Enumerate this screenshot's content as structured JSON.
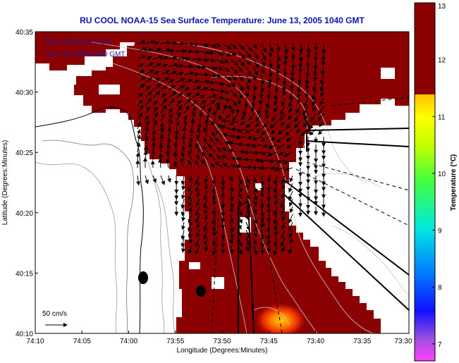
{
  "title": "RU COOL  NOAA-15  Sea Surface Temperature:  June 13, 2005 1040 GMT",
  "legend": {
    "line1": "Raw Surface Current",
    "line2": "June 13, 2005 1000 GMT"
  },
  "scale": {
    "label": "50 cm/s"
  },
  "axes": {
    "xlabel": "Longitude (Degrees:Minutes)",
    "ylabel": "Latitude (Degrees:Minutes)",
    "xticks": [
      "74:10",
      "74:05",
      "74:00",
      "73:55",
      "73:50",
      "73:45",
      "73:40",
      "73:35",
      "73:30"
    ],
    "yticks": [
      "40:35",
      "40:30",
      "40:25",
      "40:20",
      "40:15",
      "40:10"
    ]
  },
  "colorbar": {
    "title": "Temperature (°C)",
    "ticks": [
      "13",
      "12",
      "11",
      "10",
      "9",
      "8",
      "7"
    ],
    "range": [
      6.7,
      13
    ]
  },
  "colors": {
    "sst_fill": "#8b0000",
    "land": "#ffffff",
    "title": "#0a14b4"
  }
}
